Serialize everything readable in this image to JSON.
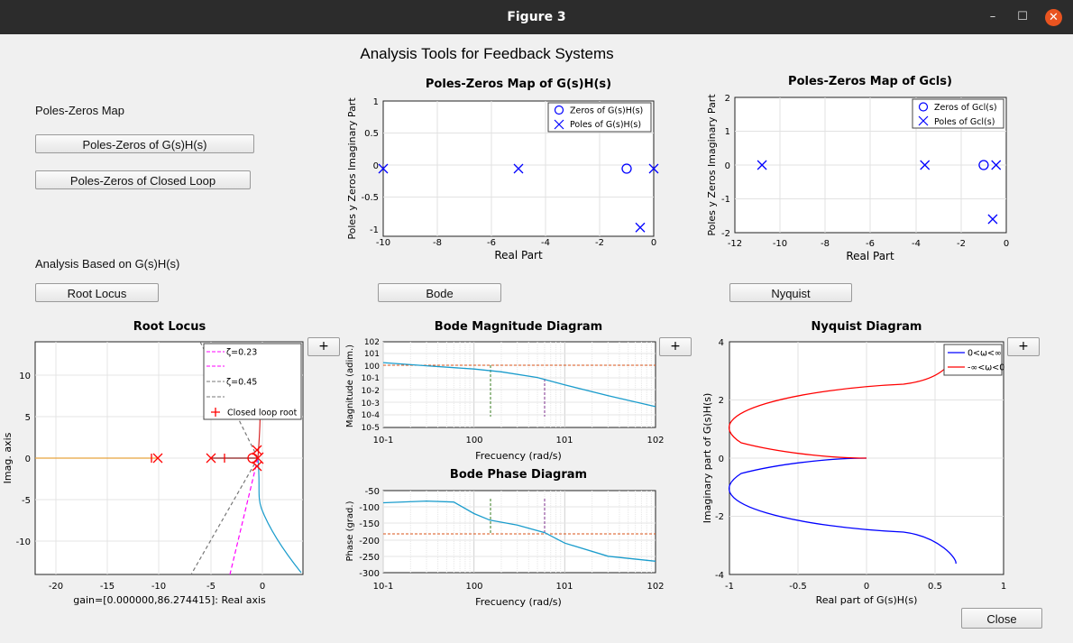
{
  "window": {
    "title": "Figure 3",
    "minimize": "–",
    "maximize": "☐",
    "close": "✕"
  },
  "main_title": "Analysis Tools for Feedback Systems",
  "left_panel": {
    "poles_zeros_heading": "Poles-Zeros Map",
    "btn_pz_open": "Poles-Zeros of G(s)H(s)",
    "btn_pz_closed": "Poles-Zeros of Closed Loop",
    "analysis_heading": "Analysis Based on G(s)H(s)"
  },
  "buttons": {
    "root_locus": "Root Locus",
    "bode": "Bode",
    "nyquist": "Nyquist",
    "close": "Close",
    "plus": "+"
  },
  "colors": {
    "blue": "#0000ff",
    "red": "#ff0000",
    "teal": "#1a9ccc",
    "magenta": "#ff00ff",
    "orange_dash": "#d95319",
    "green_dash": "#3a7d22",
    "purple_dash": "#7e2f8e"
  },
  "chart_data": [
    {
      "type": "scatter",
      "title": "Poles-Zeros Map of G(s)H(s)",
      "xlabel": "Real Part",
      "ylabel": "Poles y Zeros Imaginary Part",
      "xlim": [
        -10,
        0
      ],
      "ylim": [
        -1,
        1
      ],
      "xticks": [
        "-10",
        "-8",
        "-6",
        "-4",
        "-2",
        "0"
      ],
      "yticks": [
        "1",
        "0.5",
        "0",
        "-0.5",
        "-1"
      ],
      "legend": [
        "Zeros of G(s)H(s)",
        "Poles of G(s)H(s)"
      ],
      "zeros": [
        [
          -1,
          0
        ]
      ],
      "poles": [
        [
          -10,
          0
        ],
        [
          -5,
          0
        ],
        [
          0,
          0
        ],
        [
          -0.5,
          -0.87
        ]
      ]
    },
    {
      "type": "scatter",
      "title": "Poles-Zeros Map of Gcls)",
      "xlabel": "Real Part",
      "ylabel": "Poles y Zeros Imaginary Part",
      "xlim": [
        -12,
        0
      ],
      "ylim": [
        -2,
        2
      ],
      "xticks": [
        "-12",
        "-10",
        "-8",
        "-6",
        "-4",
        "-2",
        "0"
      ],
      "yticks": [
        "2",
        "1",
        "0",
        "-1",
        "-2"
      ],
      "legend": [
        "Zeros of Gcl(s)",
        "Poles of Gcl(s)"
      ],
      "zeros": [
        [
          -1,
          0
        ]
      ],
      "poles": [
        [
          -10.8,
          0
        ],
        [
          -3.6,
          0
        ],
        [
          -0.45,
          0
        ],
        [
          -0.6,
          -1.6
        ]
      ]
    },
    {
      "type": "line",
      "title": "Root Locus",
      "xlabel": "gain=[0.000000,86.274415]: Real axis",
      "ylabel": "Imag. axis",
      "xlim": [
        -22,
        4
      ],
      "ylim": [
        -14,
        14
      ],
      "xticks": [
        "-20",
        "-15",
        "-10",
        "-5",
        "0"
      ],
      "yticks": [
        "10",
        "5",
        "0",
        "-5",
        "-10"
      ],
      "legend": [
        "ζ=0.23",
        "",
        "ζ=0.45",
        "",
        "Closed loop root"
      ]
    },
    {
      "type": "line",
      "title": "Bode Magnitude Diagram",
      "xlabel": "Frecuency (rad/s)",
      "ylabel": "Magnitude (adim.)",
      "xscale": "log",
      "yscale": "log",
      "xlim": [
        0.1,
        100
      ],
      "xticks": [
        "10-1",
        "100",
        "101",
        "102"
      ],
      "yticks": [
        "102",
        "101",
        "100",
        "10-1",
        "10-2",
        "10-3",
        "10-4",
        "10-5"
      ],
      "x": [
        0.1,
        0.3,
        1,
        2,
        5,
        10,
        30,
        100
      ],
      "y": [
        2.0,
        1.1,
        0.6,
        0.35,
        0.12,
        0.03,
        0.004,
        0.0005
      ]
    },
    {
      "type": "line",
      "title": "Bode Phase Diagram",
      "xlabel": "Frecuency (rad/s)",
      "ylabel": "Phase (grad.)",
      "xscale": "log",
      "xlim": [
        0.1,
        100
      ],
      "ylim": [
        -300,
        -50
      ],
      "xticks": [
        "10-1",
        "100",
        "101",
        "102"
      ],
      "yticks": [
        "-50",
        "-100",
        "-150",
        "-200",
        "-250",
        "-300"
      ],
      "x": [
        0.1,
        0.3,
        0.6,
        1,
        1.5,
        3,
        6,
        10,
        30,
        100
      ],
      "y": [
        -87,
        -82,
        -85,
        -120,
        -140,
        -155,
        -178,
        -210,
        -250,
        -265
      ]
    },
    {
      "type": "line",
      "title": "Nyquist Diagram",
      "xlabel": "Real part of G(s)H(s)",
      "ylabel": "Imaginary part of G(s)H(s)",
      "xlim": [
        -1,
        1
      ],
      "ylim": [
        -4,
        4
      ],
      "xticks": [
        "-1",
        "-0.5",
        "0",
        "0.5",
        "1"
      ],
      "yticks": [
        "4",
        "2",
        "0",
        "-2",
        "-4"
      ],
      "legend": [
        "0<ω<∞",
        "-∞<ω<0"
      ]
    }
  ]
}
